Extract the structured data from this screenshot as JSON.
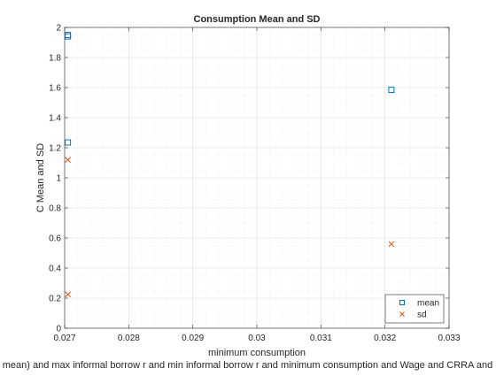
{
  "chart_data": {
    "type": "scatter",
    "title": "Consumption Mean and SD",
    "xlabel": "minimum consumption",
    "ylabel": "C Mean and SD",
    "footer_text": "mean) and max informal borrow r and min informal borrow r and minimum consumption and Wage and CRRA and D",
    "xlim": [
      0.027,
      0.033
    ],
    "ylim": [
      0,
      2
    ],
    "x_ticks": [
      0.027,
      0.028,
      0.029,
      0.03,
      0.031,
      0.032,
      0.033
    ],
    "x_tick_labels": [
      "0.027",
      "0.028",
      "0.029",
      "0.03",
      "0.031",
      "0.032",
      "0.033"
    ],
    "y_ticks": [
      0,
      0.2,
      0.4,
      0.6,
      0.8,
      1,
      1.2,
      1.4,
      1.6,
      1.8,
      2
    ],
    "y_tick_labels": [
      "0",
      "0.2",
      "0.4",
      "0.6",
      "0.8",
      "1",
      "1.2",
      "1.4",
      "1.6",
      "1.8",
      "2"
    ],
    "grid": true,
    "minor_grid": true,
    "legend_position": "bottom-right",
    "series": [
      {
        "name": "mean",
        "marker": "square",
        "color": "#0072BD",
        "points": [
          {
            "x": 0.02705,
            "y": 1.95
          },
          {
            "x": 0.02705,
            "y": 1.94
          },
          {
            "x": 0.02705,
            "y": 1.235
          },
          {
            "x": 0.0321,
            "y": 1.585
          }
        ]
      },
      {
        "name": "sd",
        "marker": "x",
        "color": "#D95319",
        "points": [
          {
            "x": 0.02705,
            "y": 1.12
          },
          {
            "x": 0.02705,
            "y": 0.225
          },
          {
            "x": 0.0321,
            "y": 0.56
          }
        ]
      }
    ]
  }
}
